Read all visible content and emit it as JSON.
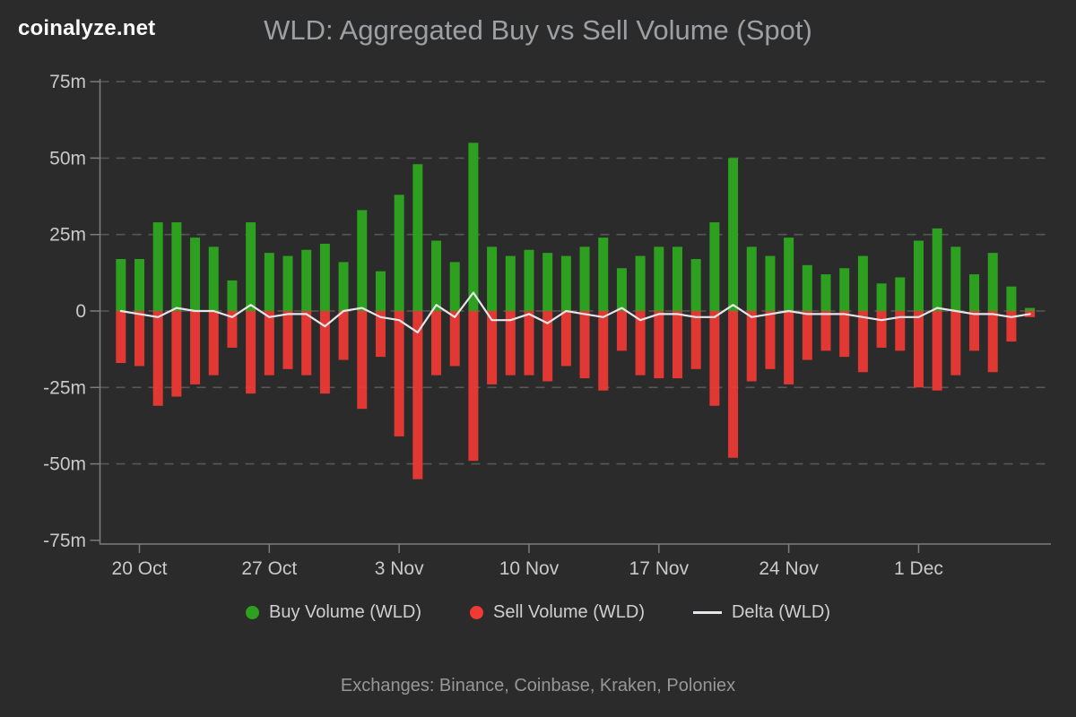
{
  "header": {
    "logo": "coinalyze.net",
    "title": "WLD: Aggregated Buy vs Sell Volume (Spot)"
  },
  "legend": {
    "buy": "Buy Volume (WLD)",
    "sell": "Sell Volume (WLD)",
    "delta": "Delta (WLD)"
  },
  "footer": {
    "text": "Exchanges: Binance, Coinbase, Kraken, Poloniex"
  },
  "colors": {
    "background": "#2b2b2b",
    "buy": "#2da01f",
    "sell": "#f23a34",
    "delta": "#e6e6ea",
    "grid": "#575757",
    "axis": "#7d7d7d",
    "tick_label": "#c9c9c9",
    "title": "#9da0a3",
    "logo": "#fafafa",
    "legend_text": "#cfcfcf",
    "footer_text": "#979797"
  },
  "chart_data": {
    "type": "bar",
    "title": "WLD: Aggregated Buy vs Sell Volume (Spot)",
    "value_unit": "m",
    "grid": "dashed-horizontal",
    "legend_position": "bottom",
    "categories": [
      "19 Oct",
      "20 Oct",
      "21 Oct",
      "22 Oct",
      "23 Oct",
      "24 Oct",
      "25 Oct",
      "26 Oct",
      "27 Oct",
      "28 Oct",
      "29 Oct",
      "30 Oct",
      "31 Oct",
      "1 Nov",
      "2 Nov",
      "3 Nov",
      "4 Nov",
      "5 Nov",
      "6 Nov",
      "7 Nov",
      "8 Nov",
      "9 Nov",
      "10 Nov",
      "11 Nov",
      "12 Nov",
      "13 Nov",
      "14 Nov",
      "15 Nov",
      "16 Nov",
      "17 Nov",
      "18 Nov",
      "19 Nov",
      "20 Nov",
      "21 Nov",
      "22 Nov",
      "23 Nov",
      "24 Nov",
      "25 Nov",
      "26 Nov",
      "27 Nov",
      "28 Nov",
      "29 Nov",
      "30 Nov",
      "1 Dec",
      "2 Dec",
      "3 Dec",
      "4 Dec",
      "5 Dec",
      "6 Dec",
      "7 Dec"
    ],
    "series": [
      {
        "name": "Buy Volume (WLD)",
        "type": "bar",
        "color": "#2da01f",
        "values": [
          17,
          17,
          29,
          29,
          24,
          21,
          10,
          29,
          19,
          18,
          20,
          22,
          16,
          33,
          13,
          38,
          48,
          23,
          16,
          55,
          21,
          18,
          20,
          19,
          18,
          21,
          24,
          14,
          18,
          21,
          21,
          17,
          29,
          50,
          21,
          18,
          24,
          15,
          12,
          14,
          18,
          9,
          11,
          23,
          27,
          21,
          12,
          19,
          8,
          1
        ]
      },
      {
        "name": "Sell Volume (WLD)",
        "type": "bar",
        "color": "#f23a34",
        "values": [
          -17,
          -18,
          -31,
          -28,
          -24,
          -21,
          -12,
          -27,
          -21,
          -19,
          -21,
          -27,
          -16,
          -32,
          -15,
          -41,
          -55,
          -21,
          -18,
          -49,
          -24,
          -21,
          -21,
          -23,
          -18,
          -22,
          -26,
          -13,
          -21,
          -22,
          -22,
          -19,
          -31,
          -48,
          -23,
          -19,
          -24,
          -16,
          -13,
          -15,
          -20,
          -12,
          -13,
          -25,
          -26,
          -21,
          -13,
          -20,
          -10,
          -2
        ]
      },
      {
        "name": "Delta (WLD)",
        "type": "line",
        "color": "#e6e6ea",
        "values": [
          0,
          -1,
          -2,
          1,
          0,
          0,
          -2,
          2,
          -2,
          -1,
          -1,
          -5,
          0,
          1,
          -2,
          -3,
          -7,
          2,
          -2,
          6,
          -3,
          -3,
          -1,
          -4,
          0,
          -1,
          -2,
          1,
          -3,
          -1,
          -1,
          -2,
          -2,
          2,
          -2,
          -1,
          0,
          -1,
          -1,
          -1,
          -2,
          -3,
          -2,
          -2,
          1,
          0,
          -1,
          -1,
          -2,
          -1
        ]
      }
    ],
    "y_axis": {
      "range": [
        -75,
        75
      ],
      "ticks": [
        75,
        50,
        25,
        0,
        -25,
        -50,
        -75
      ],
      "tick_labels": [
        "75m",
        "50m",
        "25m",
        "0",
        "-25m",
        "-50m",
        "-75m"
      ]
    },
    "x_axis": {
      "tick_labels": [
        "20 Oct",
        "27 Oct",
        "3 Nov",
        "10 Nov",
        "17 Nov",
        "24 Nov",
        "1 Dec"
      ],
      "tick_category_indices": [
        1,
        8,
        15,
        22,
        29,
        36,
        43
      ]
    }
  }
}
